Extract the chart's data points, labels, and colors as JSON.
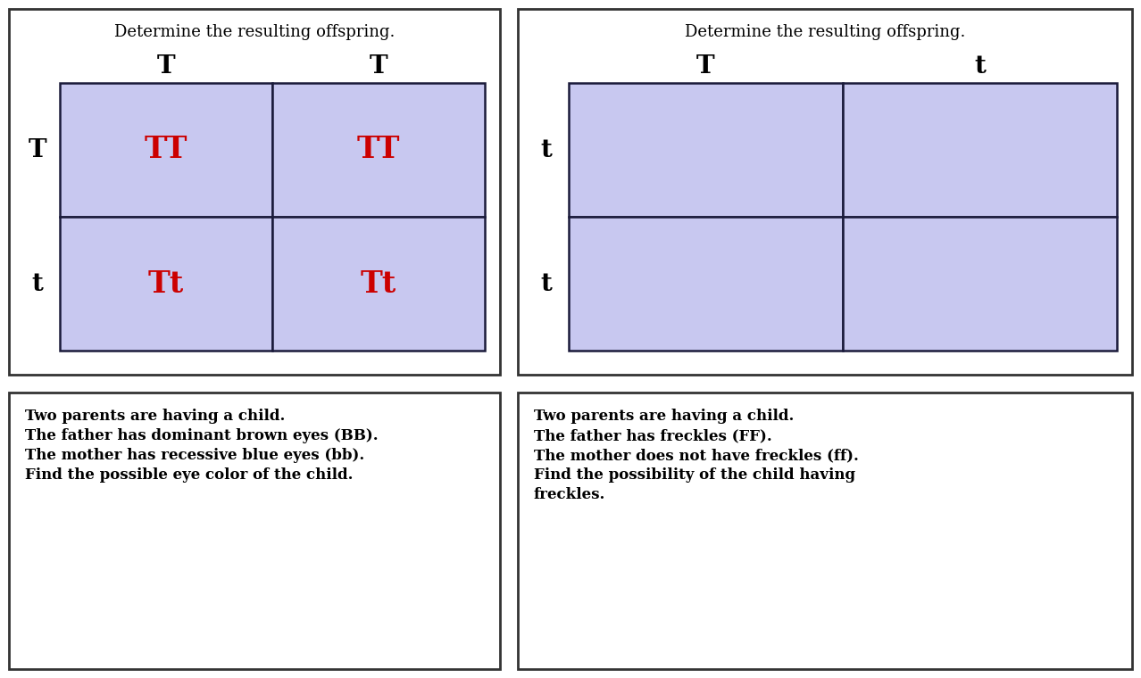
{
  "bg_color": "#ffffff",
  "cell_fill": "#c8c8f0",
  "cell_edge": "#1a1a3a",
  "panel_edge": "#333333",
  "text_red": "#cc0000",
  "text_black": "#000000",
  "panel1": {
    "subtitle": "Determine the resulting offspring.",
    "col_headers": [
      "T",
      "T"
    ],
    "row_headers": [
      "T",
      "t"
    ],
    "cells": [
      [
        "TT",
        "TT"
      ],
      [
        "Tt",
        "Tt"
      ]
    ]
  },
  "panel2": {
    "subtitle": "Determine the resulting offspring.",
    "col_headers": [
      "T",
      "t"
    ],
    "row_headers": [
      "t",
      "t"
    ],
    "cells": [
      [
        "",
        ""
      ],
      [
        "",
        ""
      ]
    ]
  },
  "panel3": {
    "lines": [
      "Two parents are having a child.",
      "The father has dominant brown eyes (BB).",
      "The mother has recessive blue eyes (bb).",
      "Find the possible eye color of the child."
    ]
  },
  "panel4": {
    "lines": [
      "Two parents are having a child.",
      "The father has freckles (FF).",
      "The mother does not have freckles (ff).",
      "Find the possibility of the child having",
      "freckles."
    ]
  }
}
